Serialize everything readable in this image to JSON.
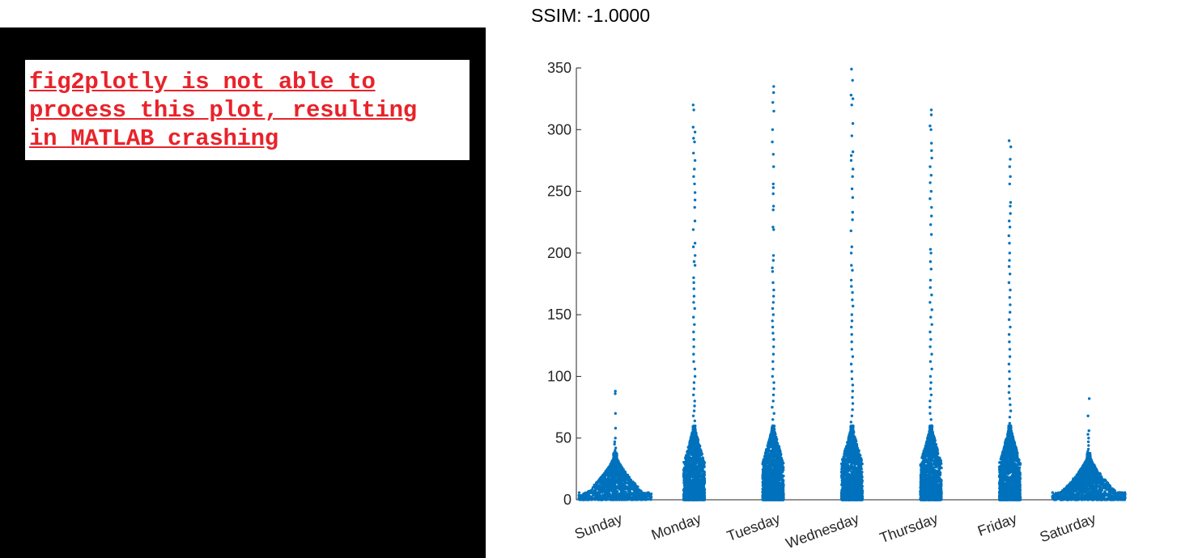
{
  "title": "SSIM: -1.0000",
  "error_message": "fig2plotly is not able to\nprocess this plot, resulting\nin MATLAB crashing",
  "colors": {
    "marker": "#0072bd",
    "error_text": "#e8232a",
    "panel": "#000000"
  },
  "chart_data": {
    "type": "scatter",
    "subtype": "swarm",
    "title": "",
    "xlabel": "",
    "ylabel": "",
    "categories": [
      "Sunday",
      "Monday",
      "Tuesday",
      "Wednesday",
      "Thursday",
      "Friday",
      "Saturday"
    ],
    "ylim": [
      0,
      350
    ],
    "yticks": [
      0,
      50,
      100,
      150,
      200,
      250,
      300,
      350
    ],
    "grid": false,
    "series": [
      {
        "category": "Sunday",
        "max": 88,
        "top_points": [
          88,
          86,
          70,
          58,
          50,
          47,
          45,
          42,
          40,
          38
        ]
      },
      {
        "category": "Monday",
        "max": 320,
        "top_points": [
          320,
          316,
          302,
          298,
          293,
          290,
          281,
          275,
          268,
          262,
          256,
          249,
          243,
          237,
          226,
          219,
          208,
          205,
          198,
          193,
          190,
          180,
          176,
          171,
          165,
          160,
          155,
          148,
          142,
          136,
          130,
          124,
          118,
          112,
          106,
          100,
          95,
          90,
          85,
          80,
          76,
          72,
          68,
          64
        ]
      },
      {
        "category": "Tuesday",
        "max": 335,
        "top_points": [
          335,
          330,
          322,
          315,
          300,
          290,
          280,
          270,
          256,
          253,
          248,
          238,
          235,
          221,
          219,
          198,
          194,
          188,
          185,
          176,
          170,
          165,
          160,
          155,
          150,
          145,
          140,
          135,
          130,
          124,
          118,
          112,
          106,
          100,
          95,
          90,
          85,
          80,
          75,
          70,
          65,
          60,
          56,
          52
        ]
      },
      {
        "category": "Wednesday",
        "max": 349,
        "top_points": [
          349,
          340,
          328,
          325,
          320,
          305,
          295,
          282,
          279,
          275,
          268,
          262,
          252,
          245,
          233,
          227,
          218,
          205,
          200,
          190,
          186,
          178,
          173,
          168,
          162,
          157,
          150,
          145,
          140,
          134,
          128,
          122,
          116,
          110,
          104,
          98,
          93,
          88,
          83,
          78,
          73,
          68,
          63,
          58
        ]
      },
      {
        "category": "Thursday",
        "max": 316,
        "top_points": [
          316,
          312,
          303,
          300,
          289,
          283,
          277,
          270,
          263,
          257,
          250,
          244,
          237,
          230,
          223,
          215,
          203,
          200,
          193,
          187,
          178,
          172,
          166,
          160,
          154,
          148,
          142,
          136,
          130,
          124,
          118,
          112,
          106,
          100,
          95,
          90,
          85,
          80,
          75,
          70,
          65,
          60,
          56
        ]
      },
      {
        "category": "Friday",
        "max": 291,
        "top_points": [
          291,
          286,
          276,
          270,
          262,
          256,
          241,
          238,
          232,
          226,
          221,
          214,
          208,
          200,
          194,
          189,
          183,
          176,
          170,
          164,
          158,
          152,
          146,
          140,
          134,
          128,
          122,
          116,
          110,
          104,
          98,
          92,
          87,
          82,
          77,
          72,
          67,
          62,
          57,
          52
        ]
      },
      {
        "category": "Saturday",
        "max": 82,
        "top_points": [
          82,
          68,
          56,
          53,
          50,
          47,
          44,
          41,
          39,
          37
        ]
      }
    ]
  }
}
